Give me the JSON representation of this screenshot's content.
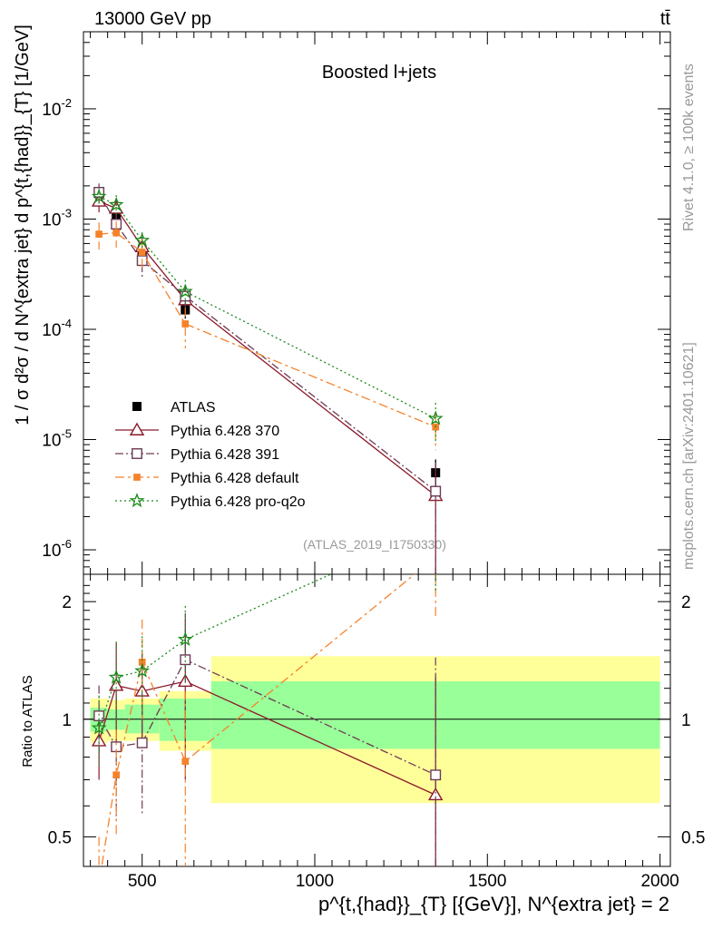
{
  "header": {
    "left": "13000 GeV pp",
    "right": "tt̄"
  },
  "side": {
    "rivet": "Rivet 4.1.0, ≥ 100k events",
    "mcplots": "mcplots.cern.ch [arXiv:2401.10621]"
  },
  "watermark": "(ATLAS_2019_I1750330)",
  "chart_data": {
    "type": "scatter",
    "title": "Boosted l+jets",
    "xlabel": "p^{t,{had}}_{T} [{GeV}], N^{extra jet} = 2",
    "ylabel": "1 / σ d²σ / d N^{extra jet} d p^{t,{had}}_{T} [1/GeV]",
    "ratio_ylabel": "Ratio to ATLAS",
    "xlim": [
      330,
      2030
    ],
    "ylim": [
      6e-07,
      0.05
    ],
    "ratio_ylim": [
      0.42,
      2.35
    ],
    "x_ticks": [
      500,
      1000,
      1500,
      2000
    ],
    "y_ticks": [
      {
        "value": 0.01,
        "base": "10",
        "exp": "-2"
      },
      {
        "value": 0.001,
        "base": "10",
        "exp": "-3"
      },
      {
        "value": 0.0001,
        "base": "10",
        "exp": "-4"
      },
      {
        "value": 1e-05,
        "base": "10",
        "exp": "-5"
      },
      {
        "value": 1e-06,
        "base": "10",
        "exp": "-6"
      }
    ],
    "ratio_ticks": [
      {
        "value": 0.5,
        "label": "0.5"
      },
      {
        "value": 1,
        "label": "1"
      },
      {
        "value": 2,
        "label": "2"
      }
    ],
    "x": [
      375,
      425,
      500,
      625,
      1350
    ],
    "data": {
      "name": "ATLAS",
      "values": [
        0.0017,
        0.00105,
        0.00048,
        0.00015,
        5e-06
      ],
      "errors": [
        0.00025,
        0.00015,
        8e-05,
        2.5e-05,
        1.6e-06
      ],
      "bins": [
        [
          350,
          400
        ],
        [
          400,
          450
        ],
        [
          450,
          550
        ],
        [
          550,
          700
        ],
        [
          700,
          2000
        ]
      ],
      "band_inner": [
        [
          0.93,
          1.07
        ],
        [
          0.94,
          1.06
        ],
        [
          0.92,
          1.09
        ],
        [
          0.88,
          1.13
        ],
        [
          0.84,
          1.25
        ]
      ],
      "band_outer": [
        [
          0.87,
          1.13
        ],
        [
          0.88,
          1.12
        ],
        [
          0.88,
          1.13
        ],
        [
          0.83,
          1.18
        ],
        [
          0.61,
          1.45
        ]
      ]
    },
    "series": [
      {
        "name": "Pythia 6.428 370",
        "color": "#8b1a2b",
        "marker": "triangle",
        "dash": "",
        "values": [
          0.00145,
          0.00125,
          0.00056,
          0.000185,
          3.1e-06
        ],
        "errors": [
          0.0003,
          0.00025,
          0.00012,
          5e-05,
          2.9e-06
        ],
        "ratio": [
          0.88,
          1.22,
          1.18,
          1.25,
          0.64
        ],
        "ratio_err": [
          0.18,
          0.35,
          0.3,
          0.55,
          0.64
        ]
      },
      {
        "name": "Pythia 6.428 391",
        "color": "#6d3b55",
        "marker": "square-open",
        "dash": "9,3,2,3",
        "values": [
          0.00175,
          0.0009,
          0.00042,
          0.0002,
          3.4e-06
        ],
        "errors": [
          0.00035,
          0.0002,
          0.00012,
          5e-05,
          2.8e-06
        ],
        "ratio": [
          1.02,
          0.85,
          0.87,
          1.42,
          0.72
        ],
        "ratio_err": [
          0.2,
          0.3,
          0.3,
          0.45,
          0.72
        ]
      },
      {
        "name": "Pythia 6.428 default",
        "color": "#f5822a",
        "marker": "square",
        "dash": "10,4,3,4",
        "values": [
          0.00073,
          0.00075,
          0.0005,
          0.000112,
          1.3e-05
        ],
        "errors": [
          0.0002,
          0.0002,
          0.00015,
          4.5e-05,
          5e-06
        ],
        "ratio": [
          0.38,
          0.72,
          1.4,
          0.78,
          2.6
        ],
        "ratio_err": [
          0.12,
          0.22,
          0.4,
          0.4,
          0.8
        ]
      },
      {
        "name": "Pythia 6.428 pro-q2o",
        "color": "#1a8a1a",
        "marker": "star",
        "dash": "2,3",
        "values": [
          0.0016,
          0.00135,
          0.00064,
          0.00022,
          1.55e-05
        ],
        "errors": [
          0.0003,
          0.0003,
          0.00012,
          6e-05,
          6e-06
        ],
        "ratio": [
          0.95,
          1.28,
          1.33,
          1.6,
          3.1
        ],
        "ratio_err": [
          0.2,
          0.3,
          0.3,
          0.35,
          1.0
        ]
      }
    ]
  }
}
